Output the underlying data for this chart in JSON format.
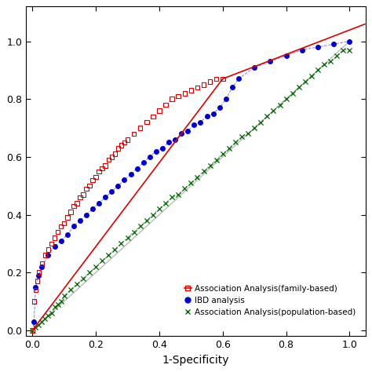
{
  "title": "",
  "xlabel": "1-Specificity",
  "ylabel": "",
  "xlim": [
    -0.02,
    1.05
  ],
  "ylim": [
    -0.02,
    1.12
  ],
  "xticks": [
    0.0,
    0.2,
    0.4,
    0.6,
    0.8,
    1.0
  ],
  "yticks": [
    0.0,
    0.2,
    0.4,
    0.6,
    0.8,
    1.0
  ],
  "diagonal_color": "#bbbbbb",
  "family_color": "#dd0000",
  "ibd_color": "#0000cc",
  "pop_color": "#006600",
  "legend_labels": [
    "Association Analysis(family-based)",
    "IBD analysis",
    "Association Analysis(population-based)"
  ],
  "background_color": "#ffffff",
  "family_fpr": [
    0.0,
    0.005,
    0.01,
    0.015,
    0.02,
    0.03,
    0.04,
    0.05,
    0.06,
    0.07,
    0.08,
    0.09,
    0.1,
    0.11,
    0.12,
    0.13,
    0.14,
    0.15,
    0.16,
    0.17,
    0.18,
    0.19,
    0.2,
    0.21,
    0.22,
    0.23,
    0.24,
    0.25,
    0.26,
    0.27,
    0.28,
    0.29,
    0.3,
    0.32,
    0.34,
    0.36,
    0.38,
    0.4,
    0.42,
    0.44,
    0.46,
    0.48,
    0.5,
    0.52,
    0.54,
    0.56,
    0.58,
    0.6
  ],
  "family_tpr": [
    0.0,
    0.1,
    0.14,
    0.17,
    0.2,
    0.23,
    0.26,
    0.28,
    0.3,
    0.32,
    0.34,
    0.36,
    0.37,
    0.39,
    0.41,
    0.43,
    0.44,
    0.46,
    0.47,
    0.49,
    0.5,
    0.52,
    0.53,
    0.55,
    0.56,
    0.57,
    0.59,
    0.6,
    0.61,
    0.63,
    0.64,
    0.65,
    0.66,
    0.68,
    0.7,
    0.72,
    0.74,
    0.76,
    0.78,
    0.8,
    0.81,
    0.82,
    0.83,
    0.84,
    0.85,
    0.86,
    0.87,
    0.87
  ],
  "family_line_fpr": [
    0.0,
    0.6,
    1.05
  ],
  "family_line_tpr": [
    0.0,
    0.87,
    1.06
  ],
  "ibd_fpr": [
    0.005,
    0.01,
    0.02,
    0.03,
    0.05,
    0.07,
    0.09,
    0.11,
    0.13,
    0.15,
    0.17,
    0.19,
    0.21,
    0.23,
    0.25,
    0.27,
    0.29,
    0.31,
    0.33,
    0.35,
    0.37,
    0.39,
    0.41,
    0.43,
    0.45,
    0.47,
    0.49,
    0.51,
    0.53,
    0.55,
    0.57,
    0.59,
    0.61,
    0.63,
    0.65,
    0.7,
    0.75,
    0.8,
    0.85,
    0.9,
    0.95,
    1.0
  ],
  "ibd_tpr": [
    0.03,
    0.15,
    0.19,
    0.22,
    0.26,
    0.29,
    0.31,
    0.33,
    0.36,
    0.38,
    0.4,
    0.42,
    0.44,
    0.46,
    0.48,
    0.5,
    0.52,
    0.54,
    0.56,
    0.58,
    0.6,
    0.62,
    0.63,
    0.65,
    0.66,
    0.68,
    0.69,
    0.71,
    0.72,
    0.74,
    0.75,
    0.77,
    0.8,
    0.84,
    0.87,
    0.91,
    0.93,
    0.95,
    0.97,
    0.98,
    0.99,
    1.0
  ],
  "pop_fpr": [
    0.0,
    0.01,
    0.02,
    0.03,
    0.04,
    0.05,
    0.06,
    0.07,
    0.08,
    0.09,
    0.1,
    0.12,
    0.14,
    0.16,
    0.18,
    0.2,
    0.22,
    0.24,
    0.26,
    0.28,
    0.3,
    0.32,
    0.34,
    0.36,
    0.38,
    0.4,
    0.42,
    0.44,
    0.46,
    0.48,
    0.5,
    0.52,
    0.54,
    0.56,
    0.58,
    0.6,
    0.62,
    0.64,
    0.66,
    0.68,
    0.7,
    0.72,
    0.74,
    0.76,
    0.78,
    0.8,
    0.82,
    0.84,
    0.86,
    0.88,
    0.9,
    0.92,
    0.94,
    0.96,
    0.98,
    1.0
  ],
  "pop_tpr": [
    0.0,
    0.01,
    0.02,
    0.03,
    0.04,
    0.05,
    0.06,
    0.08,
    0.09,
    0.1,
    0.12,
    0.14,
    0.16,
    0.18,
    0.2,
    0.22,
    0.24,
    0.26,
    0.28,
    0.3,
    0.32,
    0.34,
    0.36,
    0.38,
    0.4,
    0.42,
    0.44,
    0.46,
    0.47,
    0.49,
    0.51,
    0.53,
    0.55,
    0.57,
    0.59,
    0.61,
    0.63,
    0.65,
    0.67,
    0.68,
    0.7,
    0.72,
    0.74,
    0.76,
    0.78,
    0.8,
    0.82,
    0.84,
    0.86,
    0.88,
    0.9,
    0.92,
    0.93,
    0.95,
    0.97,
    0.97
  ]
}
